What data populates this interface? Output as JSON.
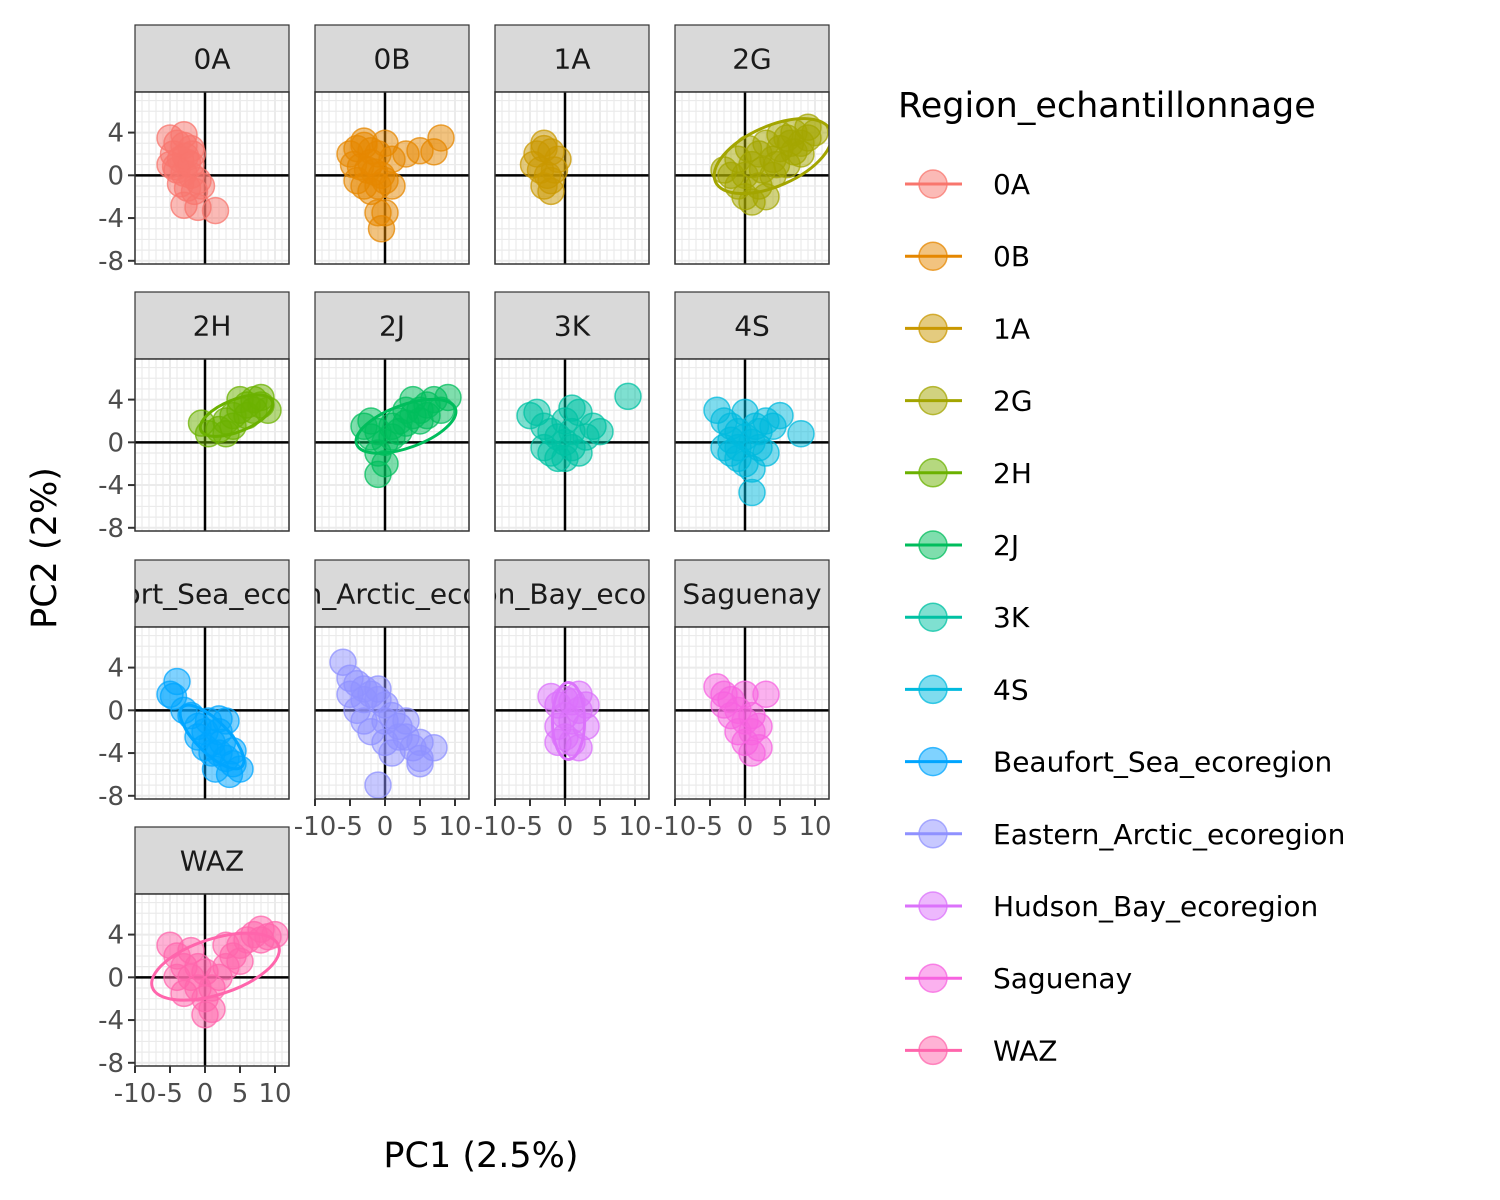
{
  "chart_data": {
    "type": "scatter",
    "faceted": true,
    "xlabel": "PC1 (2.5%)",
    "ylabel": "PC2 (2%)",
    "xlim": [
      -10,
      12
    ],
    "ylim": [
      -8.3,
      7.8
    ],
    "x_ticks": [
      -10,
      -5,
      0,
      5,
      10
    ],
    "y_ticks": [
      -8,
      -4,
      0,
      4
    ],
    "x_tick_labels": [
      "-10",
      "-5",
      "0",
      "5",
      "10"
    ],
    "y_tick_labels": [
      "-8",
      "-4",
      "0",
      "4"
    ],
    "reference_lines": {
      "x": 0,
      "y": 0
    },
    "grid": true,
    "ellipses": true,
    "point_alpha": 0.5,
    "legend": {
      "title": "Region_echantillonnage",
      "position": "right"
    },
    "series": [
      {
        "name": "0A",
        "strip_label": "0A",
        "color": "#F8766D",
        "points": [
          [
            -5,
            3.5
          ],
          [
            -4,
            3
          ],
          [
            -3,
            2.8
          ],
          [
            -2,
            2.5
          ],
          [
            -4.5,
            2
          ],
          [
            -3.5,
            1.5
          ],
          [
            -2.5,
            1.2
          ],
          [
            -5,
            1
          ],
          [
            -4,
            0.5
          ],
          [
            -3,
            0.2
          ],
          [
            -2,
            0
          ],
          [
            -1,
            -0.5
          ],
          [
            -3.5,
            -0.8
          ],
          [
            -2.5,
            -1.2
          ],
          [
            -1.5,
            -1.5
          ],
          [
            -3,
            3.8
          ],
          [
            -1.8,
            2
          ],
          [
            -0.5,
            -1
          ],
          [
            -3,
            -2.8
          ],
          [
            -1,
            -3
          ],
          [
            1.5,
            -3.3
          ],
          [
            -4.2,
            0.8
          ],
          [
            -2.8,
            1.8
          ],
          [
            -2,
            1
          ]
        ],
        "ellipse": null
      },
      {
        "name": "0B",
        "strip_label": "0B",
        "color": "#E58700",
        "points": [
          [
            -5,
            2
          ],
          [
            -4,
            2.5
          ],
          [
            -3,
            2.8
          ],
          [
            -2,
            2.3
          ],
          [
            -1,
            2
          ],
          [
            -4.5,
            1
          ],
          [
            -3.5,
            0.8
          ],
          [
            -2.5,
            0.5
          ],
          [
            -1.5,
            0.3
          ],
          [
            -0.5,
            0
          ],
          [
            -4,
            -0.5
          ],
          [
            -3,
            -1
          ],
          [
            -2,
            -1.5
          ],
          [
            -1,
            -1
          ],
          [
            0,
            -0.5
          ],
          [
            1,
            -1
          ],
          [
            3,
            2
          ],
          [
            5,
            2.3
          ],
          [
            7,
            2.2
          ],
          [
            8,
            3.5
          ],
          [
            0,
            3
          ],
          [
            1,
            1.5
          ],
          [
            -1,
            -3.5
          ],
          [
            0,
            -3.5
          ],
          [
            -0.5,
            -5
          ],
          [
            -3,
            3.2
          ],
          [
            -2,
            1.2
          ]
        ],
        "ellipse": null
      },
      {
        "name": "1A",
        "strip_label": "1A",
        "color": "#C99800",
        "points": [
          [
            -4,
            2
          ],
          [
            -3,
            2.5
          ],
          [
            -2,
            2.2
          ],
          [
            -4.5,
            1
          ],
          [
            -3.5,
            0.5
          ],
          [
            -2.5,
            0
          ],
          [
            -3,
            -1
          ],
          [
            -2,
            -1.5
          ],
          [
            -1,
            1.5
          ],
          [
            -3,
            3
          ],
          [
            -2,
            -0.5
          ],
          [
            -1.5,
            0.5
          ]
        ],
        "ellipse": null
      },
      {
        "name": "2G",
        "strip_label": "2G",
        "color": "#A3A500",
        "points": [
          [
            -2,
            0
          ],
          [
            -1,
            -1
          ],
          [
            0,
            -2
          ],
          [
            1,
            1
          ],
          [
            2,
            2
          ],
          [
            3,
            3
          ],
          [
            4,
            1.5
          ],
          [
            5,
            2.5
          ],
          [
            6,
            3.5
          ],
          [
            7,
            4
          ],
          [
            8,
            3
          ],
          [
            9,
            4.5
          ],
          [
            10,
            4
          ],
          [
            -3,
            0.5
          ],
          [
            0,
            0
          ],
          [
            2,
            -1
          ],
          [
            4,
            0
          ],
          [
            6,
            1
          ],
          [
            8,
            2
          ],
          [
            3,
            -2
          ],
          [
            1,
            -2.5
          ],
          [
            5,
            3.8
          ],
          [
            7,
            2.2
          ],
          [
            -1,
            1.5
          ],
          [
            0.5,
            2.5
          ],
          [
            2.5,
            0.5
          ],
          [
            6.5,
            3
          ],
          [
            9,
            3.5
          ],
          [
            4.5,
            1
          ]
        ],
        "ellipse": {
          "cx": 4,
          "cy": 1.8,
          "rx": 9,
          "ry": 2.8,
          "angle": 24
        }
      },
      {
        "name": "2H",
        "strip_label": "2H",
        "color": "#6BB100",
        "points": [
          [
            -0.5,
            1.8
          ],
          [
            0.5,
            0.8
          ],
          [
            2,
            1.2
          ],
          [
            3,
            2
          ],
          [
            4,
            2.5
          ],
          [
            5,
            3
          ],
          [
            6,
            3.5
          ],
          [
            7,
            4
          ],
          [
            8,
            3.5
          ],
          [
            9,
            3
          ],
          [
            5,
            4
          ],
          [
            4,
            1.5
          ],
          [
            6,
            2.5
          ],
          [
            3,
            0.8
          ],
          [
            8,
            4.2
          ],
          [
            7,
            3
          ]
        ],
        "ellipse": {
          "cx": 4.5,
          "cy": 2.5,
          "rx": 5.5,
          "ry": 1.5,
          "angle": 22
        }
      },
      {
        "name": "2J",
        "strip_label": "2J",
        "color": "#00BD5C",
        "points": [
          [
            -3,
            1.5
          ],
          [
            -2,
            2
          ],
          [
            -1,
            1
          ],
          [
            0,
            0
          ],
          [
            1,
            1.5
          ],
          [
            2,
            2
          ],
          [
            3,
            1.8
          ],
          [
            4,
            2.5
          ],
          [
            5,
            3
          ],
          [
            6,
            3.5
          ],
          [
            7,
            4
          ],
          [
            8,
            3
          ],
          [
            9,
            4.2
          ],
          [
            -1,
            -1
          ],
          [
            0,
            -2
          ],
          [
            -1,
            -3
          ],
          [
            1,
            0.5
          ],
          [
            3,
            3
          ],
          [
            5,
            2
          ],
          [
            -2,
            0.5
          ],
          [
            2,
            1
          ],
          [
            6,
            2.5
          ],
          [
            4,
            4
          ]
        ],
        "ellipse": {
          "cx": 3,
          "cy": 1.5,
          "rx": 7.5,
          "ry": 2,
          "angle": 20
        }
      },
      {
        "name": "3K",
        "strip_label": "3K",
        "color": "#00C1A3",
        "points": [
          [
            -5,
            2.5
          ],
          [
            -4,
            2.8
          ],
          [
            -3,
            1.5
          ],
          [
            -2,
            1
          ],
          [
            -1,
            0.5
          ],
          [
            0,
            0
          ],
          [
            1,
            -0.5
          ],
          [
            2,
            -1
          ],
          [
            3,
            0.5
          ],
          [
            4,
            1.5
          ],
          [
            5,
            1
          ],
          [
            -2,
            -1
          ],
          [
            -1,
            -1.5
          ],
          [
            0,
            2
          ],
          [
            1,
            3.2
          ],
          [
            2,
            2.8
          ],
          [
            9,
            4.3
          ],
          [
            -3,
            -0.5
          ],
          [
            0,
            -1.5
          ],
          [
            1,
            1
          ]
        ],
        "ellipse": null
      },
      {
        "name": "4S",
        "strip_label": "4S",
        "color": "#00BADE",
        "points": [
          [
            -4,
            3
          ],
          [
            -3,
            2
          ],
          [
            -2,
            1.5
          ],
          [
            -1,
            1
          ],
          [
            0,
            0.5
          ],
          [
            1,
            0
          ],
          [
            2,
            -0.5
          ],
          [
            3,
            -1
          ],
          [
            -3,
            -0.5
          ],
          [
            -2,
            -1
          ],
          [
            -1,
            -1.5
          ],
          [
            0,
            -2
          ],
          [
            1,
            -2.5
          ],
          [
            2,
            1
          ],
          [
            3,
            2
          ],
          [
            4,
            1.5
          ],
          [
            5,
            2.5
          ],
          [
            8,
            0.8
          ],
          [
            1,
            -4.7
          ],
          [
            0,
            2.8
          ],
          [
            -1,
            -0.5
          ],
          [
            1.5,
            1.5
          ],
          [
            -2,
            0.2
          ]
        ],
        "ellipse": null
      },
      {
        "name": "Beaufort_Sea_ecoregion",
        "strip_label": "Beaufort_Sea_ecoregion",
        "color": "#00A5FF",
        "points": [
          [
            -4,
            2.7
          ],
          [
            -5,
            1.5
          ],
          [
            -4.5,
            1.3
          ],
          [
            -3,
            0
          ],
          [
            -2,
            -0.5
          ],
          [
            -1,
            -1.5
          ],
          [
            0,
            -2
          ],
          [
            1,
            -3
          ],
          [
            2,
            -4
          ],
          [
            3,
            -4.5
          ],
          [
            4,
            -3.8
          ],
          [
            5,
            -5.5
          ],
          [
            3.5,
            -6
          ],
          [
            1,
            -4
          ],
          [
            0,
            -3.5
          ],
          [
            -1,
            -2.5
          ],
          [
            2,
            -2
          ],
          [
            3,
            -1
          ],
          [
            2,
            -0.8
          ],
          [
            4,
            -5
          ],
          [
            1.5,
            -5.5
          ],
          [
            2.5,
            -3
          ],
          [
            0.5,
            -1
          ]
        ],
        "ellipse": {
          "cx": 1,
          "cy": -2.5,
          "rx": 6,
          "ry": 1.5,
          "angle": -45
        }
      },
      {
        "name": "Eastern_Arctic_ecoregion",
        "strip_label": "Eastern_Arctic_ecoregion",
        "color": "#8F91FF",
        "points": [
          [
            -6,
            4.5
          ],
          [
            -5,
            3
          ],
          [
            -4,
            2.5
          ],
          [
            -3,
            2
          ],
          [
            -2,
            1.5
          ],
          [
            -1,
            1
          ],
          [
            0,
            0.5
          ],
          [
            1,
            -0.5
          ],
          [
            2,
            -1.5
          ],
          [
            3,
            -2.5
          ],
          [
            4,
            -3.5
          ],
          [
            5,
            -4.5
          ],
          [
            -4,
            0
          ],
          [
            -3,
            -1
          ],
          [
            -2,
            -2
          ],
          [
            -5,
            1.5
          ],
          [
            0,
            -3
          ],
          [
            1,
            -4
          ],
          [
            2,
            -2.5
          ],
          [
            3,
            -1
          ],
          [
            5,
            -3
          ],
          [
            -1,
            -7
          ],
          [
            5,
            -5
          ],
          [
            7,
            -3.5
          ],
          [
            -3,
            1
          ],
          [
            -1,
            2
          ],
          [
            0,
            -1
          ]
        ],
        "ellipse": null
      },
      {
        "name": "Hudson_Bay_ecoregion",
        "strip_label": "Hudson_Bay_ecoregion",
        "color": "#DB72FB",
        "points": [
          [
            -2,
            1.3
          ],
          [
            -1,
            0.5
          ],
          [
            0,
            -0.5
          ],
          [
            1,
            -1
          ],
          [
            2,
            0
          ],
          [
            3,
            0.5
          ],
          [
            -1,
            -1.5
          ],
          [
            0,
            -2.5
          ],
          [
            1,
            -3
          ],
          [
            2,
            -3.5
          ],
          [
            3,
            -1.5
          ],
          [
            0,
            1
          ],
          [
            -1,
            -3
          ],
          [
            1,
            0.8
          ],
          [
            2,
            1.5
          ]
        ],
        "ellipse": {
          "cx": 0.5,
          "cy": -1,
          "rx": 2.3,
          "ry": 3.6,
          "angle": 0
        }
      },
      {
        "name": "Saguenay",
        "strip_label": "Saguenay",
        "color": "#F763E0",
        "points": [
          [
            -4,
            2.2
          ],
          [
            -3,
            1.5
          ],
          [
            -2,
            1
          ],
          [
            -1,
            0
          ],
          [
            0,
            -1
          ],
          [
            1,
            -2
          ],
          [
            2,
            -1.5
          ],
          [
            0,
            -3
          ],
          [
            1,
            -4
          ],
          [
            2,
            -3.5
          ],
          [
            3,
            1.5
          ],
          [
            -1,
            -2
          ],
          [
            -2,
            -0.5
          ],
          [
            0,
            1.5
          ],
          [
            -3,
            0.5
          ],
          [
            1,
            -0.5
          ]
        ],
        "ellipse": null
      },
      {
        "name": "WAZ",
        "strip_label": "WAZ",
        "color": "#FF65AC",
        "points": [
          [
            -5,
            3
          ],
          [
            -4,
            2
          ],
          [
            -3,
            1
          ],
          [
            -2,
            0
          ],
          [
            -1,
            -1
          ],
          [
            0,
            -2
          ],
          [
            1,
            -3
          ],
          [
            0,
            -3.5
          ],
          [
            2,
            0
          ],
          [
            3,
            1
          ],
          [
            4,
            2
          ],
          [
            5,
            3
          ],
          [
            6,
            3.5
          ],
          [
            7,
            4
          ],
          [
            8,
            4.5
          ],
          [
            9,
            3.8
          ],
          [
            10,
            4
          ],
          [
            3,
            3
          ],
          [
            -3,
            -1.5
          ],
          [
            -1,
            1
          ],
          [
            1,
            -1
          ],
          [
            5,
            1.5
          ],
          [
            -2,
            2.5
          ],
          [
            0,
            0.5
          ],
          [
            8,
            3.5
          ],
          [
            -4,
            0
          ]
        ],
        "ellipse": {
          "cx": 1.5,
          "cy": 1,
          "rx": 9.5,
          "ry": 2.6,
          "angle": 18
        }
      }
    ]
  }
}
